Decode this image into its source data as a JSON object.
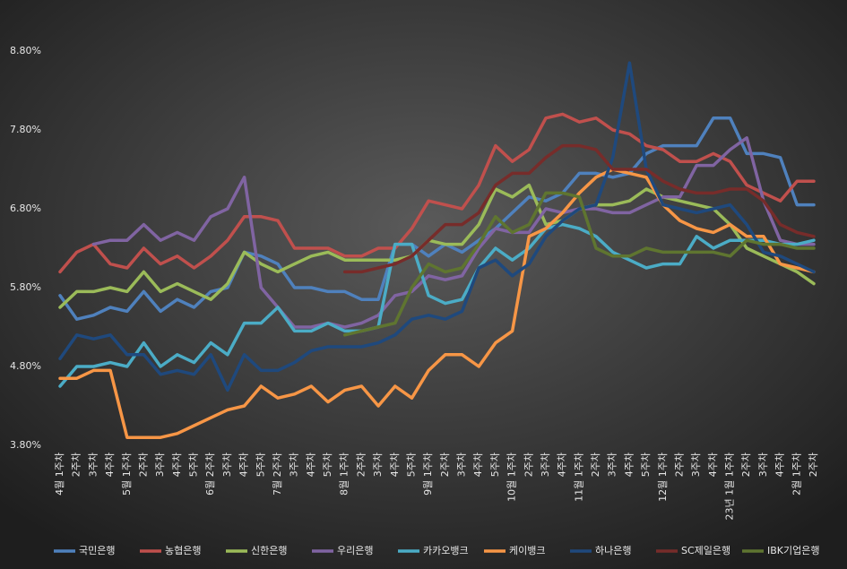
{
  "chart_data": {
    "type": "line",
    "categories": [
      "4월 1주차",
      "2주차",
      "3주차",
      "4주차",
      "5월 1주차",
      "2주차",
      "3주차",
      "4주차",
      "5주차",
      "6월 2주차",
      "3주차",
      "4주차",
      "5주차",
      "7월 2주차",
      "3주차",
      "4주차",
      "5주차",
      "8월 1주차",
      "2주차",
      "3주차",
      "4주차",
      "5주차",
      "9월 1주차",
      "2주차",
      "3주차",
      "4주차",
      "5주차",
      "10월 1주차",
      "2주차",
      "3주차",
      "4주차",
      "11월 1주차",
      "2주차",
      "3주차",
      "4주차",
      "5주차",
      "12월 1주차",
      "2주차",
      "3주차",
      "4주차",
      "23년 1월 1주차",
      "2주차",
      "3주차",
      "4주차",
      "2월 1주차",
      "2주차"
    ],
    "ylim": [
      3.8,
      8.8
    ],
    "yticks": [
      {
        "value": 3.8,
        "label": "3.80%"
      },
      {
        "value": 4.8,
        "label": "4.80%"
      },
      {
        "value": 5.8,
        "label": "5.80%"
      },
      {
        "value": 6.8,
        "label": "6.80%"
      },
      {
        "value": 7.8,
        "label": "7.80%"
      },
      {
        "value": 8.8,
        "label": "8.80%"
      }
    ],
    "grid": false,
    "legend": "bottom",
    "series": [
      {
        "name": "국민은행",
        "color": "#4f81bd",
        "values": [
          5.7,
          5.4,
          5.45,
          5.55,
          5.5,
          5.75,
          5.5,
          5.65,
          5.55,
          5.75,
          5.8,
          6.25,
          6.2,
          6.1,
          5.8,
          5.8,
          5.75,
          5.75,
          5.65,
          5.65,
          6.35,
          6.35,
          6.2,
          6.35,
          6.25,
          6.4,
          6.55,
          6.75,
          6.95,
          6.9,
          7.0,
          7.25,
          7.25,
          7.2,
          7.25,
          7.5,
          7.6,
          7.6,
          7.6,
          7.95,
          7.95,
          7.5,
          7.5,
          7.45,
          6.85,
          6.85
        ]
      },
      {
        "name": "농협은행",
        "color": "#c0504d",
        "values": [
          6.0,
          6.25,
          6.35,
          6.1,
          6.05,
          6.3,
          6.1,
          6.2,
          6.05,
          6.2,
          6.4,
          6.7,
          6.7,
          6.65,
          6.3,
          6.3,
          6.3,
          6.2,
          6.2,
          6.3,
          6.3,
          6.55,
          6.9,
          6.85,
          6.8,
          7.1,
          7.6,
          7.4,
          7.55,
          7.95,
          8.0,
          7.9,
          7.95,
          7.8,
          7.75,
          7.6,
          7.55,
          7.4,
          7.4,
          7.5,
          7.4,
          7.1,
          7.0,
          6.9,
          7.15,
          7.15
        ]
      },
      {
        "name": "신한은행",
        "color": "#9bbb59",
        "values": [
          5.55,
          5.75,
          5.75,
          5.8,
          5.75,
          6.0,
          5.75,
          5.85,
          5.75,
          5.65,
          5.85,
          6.25,
          6.1,
          6.0,
          6.1,
          6.2,
          6.25,
          6.15,
          6.15,
          6.15,
          6.15,
          6.2,
          6.4,
          6.35,
          6.35,
          6.6,
          7.05,
          6.95,
          7.1,
          6.6,
          6.65,
          6.8,
          6.85,
          6.85,
          6.9,
          7.05,
          6.95,
          6.9,
          6.85,
          6.8,
          6.6,
          6.3,
          6.2,
          6.1,
          6.0,
          5.85
        ]
      },
      {
        "name": "우리은행",
        "color": "#8064a2",
        "values": [
          null,
          null,
          6.35,
          6.4,
          6.4,
          6.6,
          6.4,
          6.5,
          6.4,
          6.7,
          6.8,
          7.2,
          5.8,
          5.55,
          5.3,
          5.3,
          5.35,
          5.3,
          5.35,
          5.45,
          5.7,
          5.75,
          5.95,
          5.9,
          5.95,
          6.3,
          6.55,
          6.5,
          6.5,
          6.8,
          6.75,
          6.8,
          6.8,
          6.75,
          6.75,
          6.85,
          6.95,
          6.95,
          7.35,
          7.35,
          7.55,
          7.7,
          6.9,
          6.4,
          6.35,
          6.35
        ]
      },
      {
        "name": "카카오뱅크",
        "color": "#4bacc6",
        "values": [
          4.55,
          4.8,
          4.8,
          4.85,
          4.8,
          5.1,
          4.8,
          4.95,
          4.85,
          5.1,
          4.95,
          5.35,
          5.35,
          5.55,
          5.25,
          5.25,
          5.35,
          5.25,
          5.25,
          5.3,
          6.35,
          6.35,
          5.7,
          5.6,
          5.65,
          6.05,
          6.3,
          6.15,
          6.3,
          6.55,
          6.6,
          6.55,
          6.45,
          6.25,
          6.15,
          6.05,
          6.1,
          6.1,
          6.45,
          6.3,
          6.4,
          6.4,
          6.4,
          6.35,
          6.35,
          6.4
        ]
      },
      {
        "name": "케이뱅크",
        "color": "#f79646",
        "values": [
          4.65,
          4.65,
          4.75,
          4.75,
          3.9,
          3.9,
          3.9,
          3.95,
          4.05,
          4.15,
          4.25,
          4.3,
          4.55,
          4.4,
          4.45,
          4.55,
          4.35,
          4.5,
          4.55,
          4.3,
          4.55,
          4.4,
          4.75,
          4.95,
          4.95,
          4.8,
          5.1,
          5.25,
          6.45,
          6.55,
          6.75,
          7.0,
          7.2,
          7.3,
          7.25,
          7.2,
          6.85,
          6.65,
          6.55,
          6.5,
          6.6,
          6.45,
          6.45,
          6.1,
          6.05,
          6.0
        ]
      },
      {
        "name": "하나은행",
        "color": "#1f497d",
        "values": [
          4.9,
          5.2,
          5.15,
          5.2,
          4.95,
          4.95,
          4.7,
          4.75,
          4.7,
          4.95,
          4.5,
          4.95,
          4.75,
          4.75,
          4.85,
          5.0,
          5.05,
          5.05,
          5.05,
          5.1,
          5.2,
          5.4,
          5.45,
          5.4,
          5.5,
          6.05,
          6.15,
          5.95,
          6.1,
          6.45,
          6.65,
          6.8,
          6.85,
          7.45,
          8.65,
          7.3,
          6.85,
          6.8,
          6.75,
          6.8,
          6.85,
          6.6,
          6.25,
          6.2,
          6.1,
          6.0
        ]
      },
      {
        "name": "SC제일은행",
        "color": "#772c2a",
        "values": [
          null,
          null,
          null,
          null,
          null,
          null,
          null,
          null,
          null,
          null,
          null,
          null,
          null,
          null,
          null,
          null,
          null,
          6.0,
          6.0,
          6.05,
          6.1,
          6.2,
          6.4,
          6.6,
          6.6,
          6.75,
          7.1,
          7.25,
          7.25,
          7.45,
          7.6,
          7.6,
          7.55,
          7.3,
          7.3,
          7.3,
          7.15,
          7.05,
          7.0,
          7.0,
          7.05,
          7.05,
          6.9,
          6.6,
          6.5,
          6.45
        ]
      },
      {
        "name": "IBK기업은행",
        "color": "#5f7530",
        "values": [
          null,
          null,
          null,
          null,
          null,
          null,
          null,
          null,
          null,
          null,
          null,
          null,
          null,
          null,
          null,
          null,
          null,
          5.2,
          5.25,
          5.3,
          5.35,
          5.8,
          6.1,
          6.0,
          6.05,
          6.35,
          6.7,
          6.5,
          6.6,
          7.0,
          7.0,
          6.95,
          6.3,
          6.2,
          6.2,
          6.3,
          6.25,
          6.25,
          6.25,
          6.25,
          6.2,
          6.4,
          6.35,
          6.35,
          6.3,
          6.3
        ]
      }
    ]
  }
}
